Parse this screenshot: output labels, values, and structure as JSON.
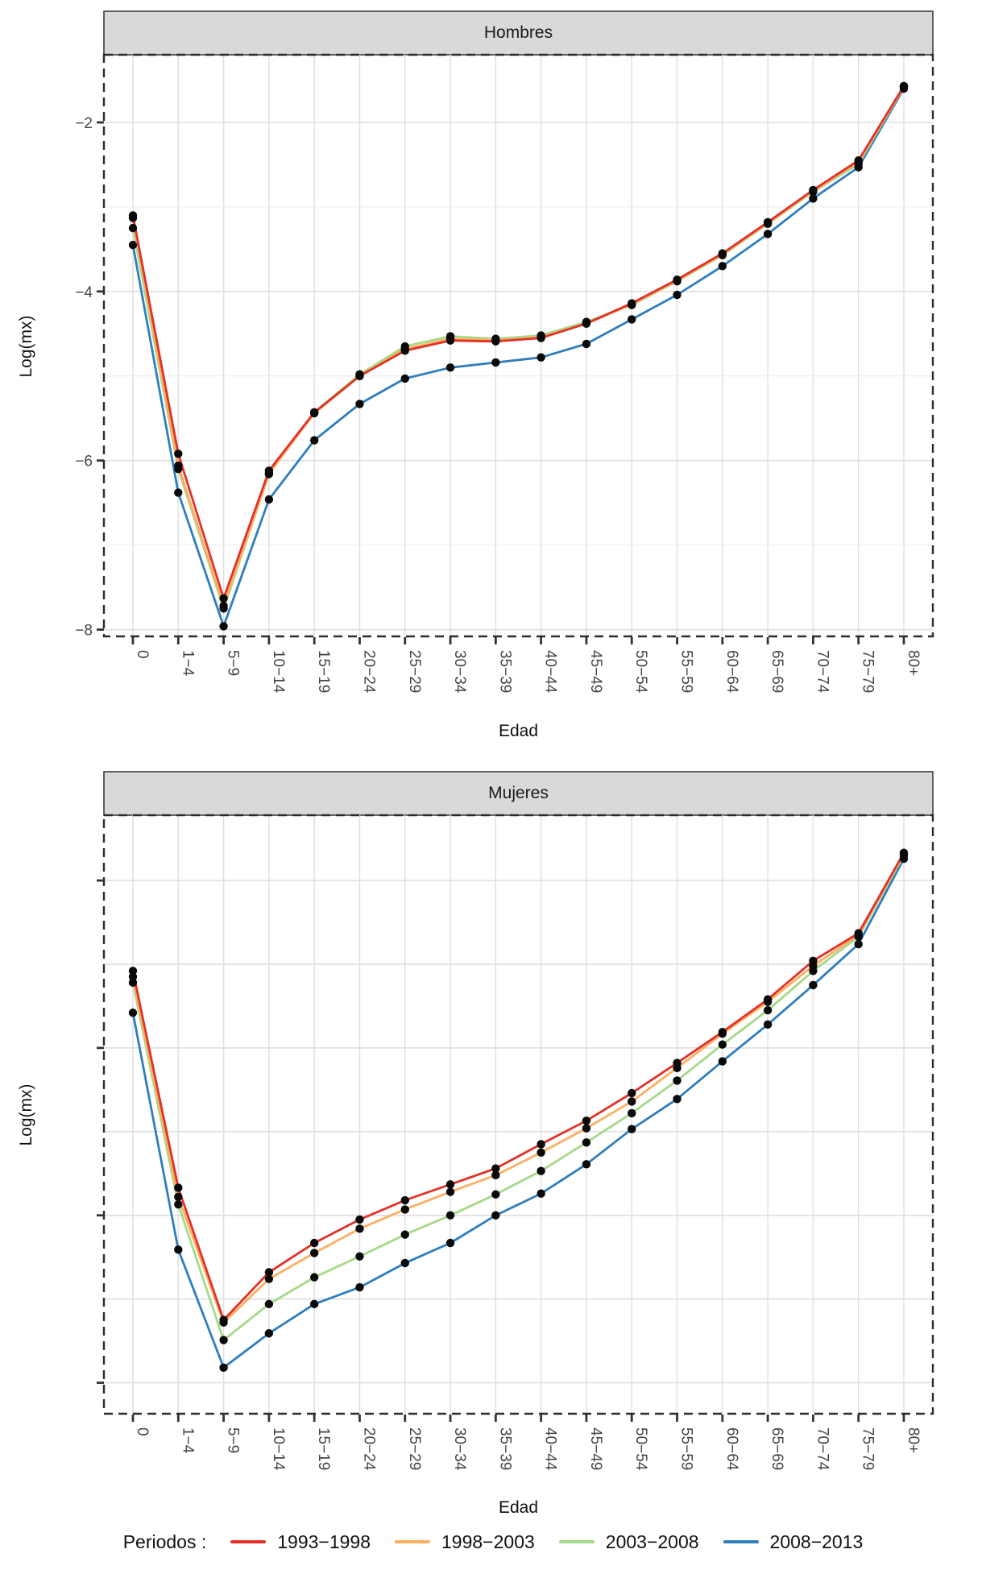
{
  "figure": {
    "facets": [
      {
        "title": "Hombres"
      },
      {
        "title": "Mujeres"
      }
    ],
    "x_axis_title": "Edad",
    "y_axis_title": "Log(mx)"
  },
  "legend": {
    "title": "Periodos :",
    "items": [
      {
        "label": "1993−1998",
        "color": "#e23128"
      },
      {
        "label": "1998−2003",
        "color": "#fdae61"
      },
      {
        "label": "2003−2008",
        "color": "#a5d989"
      },
      {
        "label": "2008−2013",
        "color": "#2f7ebc"
      }
    ]
  },
  "chart_data": [
    {
      "type": "line",
      "facet": "Hombres",
      "xlabel": "Edad",
      "ylabel": "Log(mx)",
      "categories": [
        "0",
        "1−4",
        "5−9",
        "10−14",
        "15−19",
        "20−24",
        "25−29",
        "30−34",
        "35−39",
        "40−44",
        "45−49",
        "50−54",
        "55−59",
        "60−64",
        "65−69",
        "70−74",
        "75−79",
        "80+"
      ],
      "ylim": [
        -8.08,
        -1.2
      ],
      "yticks": {
        "values": [
          -2,
          -4,
          -6,
          -8
        ],
        "labels": [
          "−2",
          "−4",
          "−6",
          "−8"
        ]
      },
      "ygrid_major": [
        -2,
        -4,
        -6,
        -8
      ],
      "ygrid_minor": [
        -3,
        -5,
        -7
      ],
      "grid": true,
      "legend_position": "bottom",
      "point_color": "#0a0a0a",
      "series": [
        {
          "name": "1993−1998",
          "color": "#e23128",
          "values": [
            -3.1,
            -5.92,
            -7.63,
            -6.12,
            -5.43,
            -5.0,
            -4.7,
            -4.58,
            -4.59,
            -4.55,
            -4.38,
            -4.14,
            -3.86,
            -3.55,
            -3.18,
            -2.8,
            -2.45,
            -1.57
          ]
        },
        {
          "name": "1998−2003",
          "color": "#fdae61",
          "values": [
            -3.13,
            -6.06,
            -7.72,
            -6.15,
            -5.44,
            -5.0,
            -4.68,
            -4.56,
            -4.58,
            -4.54,
            -4.38,
            -4.15,
            -3.87,
            -3.56,
            -3.19,
            -2.81,
            -2.47,
            -1.58
          ]
        },
        {
          "name": "2003−2008",
          "color": "#a5d989",
          "values": [
            -3.25,
            -6.1,
            -7.75,
            -6.16,
            -5.43,
            -4.98,
            -4.65,
            -4.53,
            -4.56,
            -4.52,
            -4.36,
            -4.16,
            -3.88,
            -3.57,
            -3.2,
            -2.82,
            -2.49,
            -1.58
          ]
        },
        {
          "name": "2008−2013",
          "color": "#2f7ebc",
          "values": [
            -3.45,
            -6.38,
            -7.96,
            -6.46,
            -5.76,
            -5.33,
            -5.03,
            -4.9,
            -4.84,
            -4.78,
            -4.62,
            -4.33,
            -4.04,
            -3.7,
            -3.32,
            -2.9,
            -2.53,
            -1.6
          ]
        }
      ]
    },
    {
      "type": "line",
      "facet": "Mujeres",
      "xlabel": "Edad",
      "ylabel": "Log(mx)",
      "categories": [
        "0",
        "1−4",
        "5−9",
        "10−14",
        "15−19",
        "20−24",
        "25−29",
        "30−34",
        "35−39",
        "40−44",
        "45−49",
        "50−54",
        "55−59",
        "60−64",
        "65−69",
        "70−74",
        "75−79",
        "80+"
      ],
      "ylim": [
        -8.37,
        -1.22
      ],
      "yticks": {
        "values": [
          -2,
          -4,
          -6,
          -8
        ],
        "labels": []
      },
      "ygrid_major": [
        -2,
        -3,
        -4,
        -5,
        -6,
        -7,
        -8
      ],
      "ygrid_minor": [],
      "grid": true,
      "legend_position": "bottom",
      "point_color": "#0a0a0a",
      "series": [
        {
          "name": "1993−1998",
          "color": "#e23128",
          "values": [
            -3.08,
            -5.67,
            -7.25,
            -6.68,
            -6.33,
            -6.05,
            -5.82,
            -5.63,
            -5.44,
            -5.15,
            -4.87,
            -4.54,
            -4.18,
            -3.81,
            -3.42,
            -2.96,
            -2.63,
            -1.67
          ]
        },
        {
          "name": "1998−2003",
          "color": "#fdae61",
          "values": [
            -3.15,
            -5.78,
            -7.28,
            -6.76,
            -6.45,
            -6.16,
            -5.93,
            -5.72,
            -5.52,
            -5.25,
            -4.96,
            -4.64,
            -4.24,
            -3.83,
            -3.45,
            -3.02,
            -2.65,
            -1.68
          ]
        },
        {
          "name": "2003−2008",
          "color": "#a5d989",
          "values": [
            -3.22,
            -5.87,
            -7.49,
            -7.06,
            -6.74,
            -6.49,
            -6.23,
            -6.0,
            -5.75,
            -5.47,
            -5.13,
            -4.78,
            -4.39,
            -3.96,
            -3.55,
            -3.08,
            -2.67,
            -1.7
          ]
        },
        {
          "name": "2008−2013",
          "color": "#2f7ebc",
          "values": [
            -3.58,
            -6.41,
            -7.82,
            -7.41,
            -7.06,
            -6.86,
            -6.57,
            -6.33,
            -6.0,
            -5.74,
            -5.39,
            -4.97,
            -4.61,
            -4.16,
            -3.72,
            -3.25,
            -2.76,
            -1.74
          ]
        }
      ]
    }
  ],
  "style": {
    "strip_fill": "#d9d9d9",
    "strip_border": "#3c3c3c",
    "panel_border": "#2b2b2b",
    "grid_major_color": "#e0e0e0",
    "grid_minor_color": "#ebebeb",
    "tick_color": "#333333",
    "tick_label_color": "#444444"
  }
}
